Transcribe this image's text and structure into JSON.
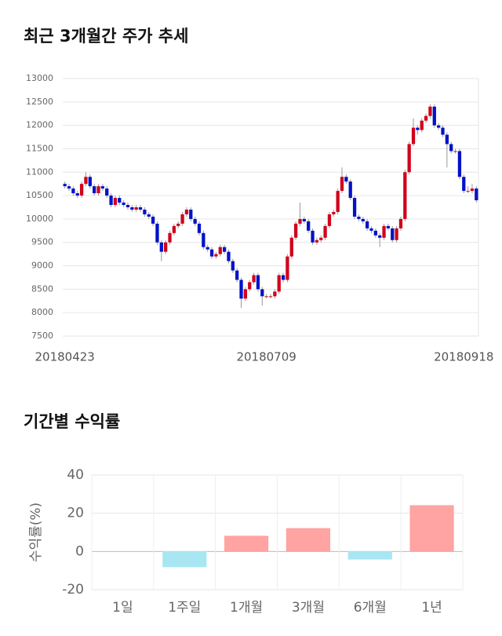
{
  "chart_data": [
    {
      "type": "candlestick",
      "title": "최근 3개월간 주가 추세",
      "up_color": "#d0021b",
      "down_color": "#0012c8",
      "grid": true,
      "ylim": [
        7500,
        13000
      ],
      "yticks": [
        7500,
        8000,
        8500,
        9000,
        9500,
        10000,
        10500,
        11000,
        11500,
        12000,
        12500,
        13000
      ],
      "categories": [
        "20180423",
        null,
        null,
        null,
        null,
        null,
        null,
        null,
        null,
        null,
        null,
        null,
        null,
        null,
        null,
        null,
        null,
        null,
        null,
        null,
        null,
        null,
        null,
        null,
        null,
        null,
        null,
        null,
        null,
        null,
        null,
        null,
        null,
        null,
        null,
        null,
        null,
        null,
        null,
        null,
        null,
        null,
        null,
        null,
        null,
        null,
        null,
        null,
        "20180709",
        null,
        null,
        null,
        null,
        null,
        null,
        null,
        null,
        null,
        null,
        null,
        null,
        null,
        null,
        null,
        null,
        null,
        null,
        null,
        null,
        null,
        null,
        null,
        null,
        null,
        null,
        null,
        null,
        null,
        null,
        null,
        null,
        null,
        null,
        null,
        null,
        null,
        null,
        null,
        null,
        null,
        null,
        null,
        null,
        null,
        null,
        "20180918",
        null,
        null,
        null
      ],
      "candles": [
        [
          10750,
          10800,
          10650,
          10700
        ],
        [
          10700,
          10750,
          10600,
          10650
        ],
        [
          10650,
          10700,
          10500,
          10550
        ],
        [
          10550,
          10600,
          10450,
          10500
        ],
        [
          10500,
          10800,
          10450,
          10750
        ],
        [
          10750,
          11000,
          10700,
          10900
        ],
        [
          10900,
          10950,
          10650,
          10700
        ],
        [
          10700,
          10750,
          10500,
          10550
        ],
        [
          10550,
          10750,
          10500,
          10700
        ],
        [
          10700,
          10750,
          10600,
          10650
        ],
        [
          10650,
          10700,
          10450,
          10500
        ],
        [
          10500,
          10550,
          10250,
          10300
        ],
        [
          10300,
          10500,
          10250,
          10450
        ],
        [
          10450,
          10500,
          10300,
          10350
        ],
        [
          10350,
          10400,
          10250,
          10300
        ],
        [
          10300,
          10350,
          10200,
          10250
        ],
        [
          10250,
          10300,
          10150,
          10200
        ],
        [
          10200,
          10300,
          10150,
          10250
        ],
        [
          10250,
          10300,
          10150,
          10200
        ],
        [
          10200,
          10250,
          10050,
          10100
        ],
        [
          10100,
          10150,
          10000,
          10050
        ],
        [
          10050,
          10100,
          9850,
          9900
        ],
        [
          9900,
          9950,
          9450,
          9500
        ],
        [
          9500,
          9550,
          9100,
          9300
        ],
        [
          9300,
          9550,
          9250,
          9500
        ],
        [
          9500,
          9750,
          9450,
          9700
        ],
        [
          9700,
          9900,
          9650,
          9850
        ],
        [
          9850,
          9950,
          9800,
          9900
        ],
        [
          9900,
          10150,
          9850,
          10100
        ],
        [
          10100,
          10250,
          10050,
          10200
        ],
        [
          10200,
          10250,
          9950,
          10000
        ],
        [
          10000,
          10050,
          9850,
          9900
        ],
        [
          9900,
          9950,
          9650,
          9700
        ],
        [
          9700,
          9750,
          9350,
          9400
        ],
        [
          9400,
          9450,
          9300,
          9350
        ],
        [
          9350,
          9400,
          9150,
          9200
        ],
        [
          9200,
          9300,
          9150,
          9250
        ],
        [
          9250,
          9450,
          9200,
          9400
        ],
        [
          9400,
          9450,
          9250,
          9300
        ],
        [
          9300,
          9350,
          9050,
          9100
        ],
        [
          9100,
          9150,
          8850,
          8900
        ],
        [
          8900,
          8950,
          8650,
          8700
        ],
        [
          8700,
          8750,
          8100,
          8300
        ],
        [
          8300,
          8550,
          8250,
          8500
        ],
        [
          8500,
          8700,
          8450,
          8650
        ],
        [
          8650,
          8850,
          8600,
          8800
        ],
        [
          8800,
          8850,
          8450,
          8500
        ],
        [
          8500,
          8550,
          8150,
          8350
        ],
        [
          8350,
          8400,
          8300,
          8350
        ],
        [
          8350,
          8400,
          8300,
          8350
        ],
        [
          8350,
          8500,
          8300,
          8450
        ],
        [
          8450,
          8850,
          8400,
          8800
        ],
        [
          8800,
          8850,
          8650,
          8700
        ],
        [
          8700,
          9250,
          8650,
          9200
        ],
        [
          9200,
          9650,
          9150,
          9600
        ],
        [
          9600,
          9950,
          9550,
          9900
        ],
        [
          9900,
          10350,
          9850,
          10000
        ],
        [
          10000,
          10050,
          9900,
          9950
        ],
        [
          9950,
          10000,
          9700,
          9750
        ],
        [
          9750,
          9800,
          9450,
          9500
        ],
        [
          9500,
          9600,
          9450,
          9550
        ],
        [
          9550,
          9650,
          9500,
          9600
        ],
        [
          9600,
          9900,
          9550,
          9850
        ],
        [
          9850,
          10150,
          9800,
          10100
        ],
        [
          10100,
          10200,
          10050,
          10150
        ],
        [
          10150,
          10650,
          10100,
          10600
        ],
        [
          10600,
          11100,
          10550,
          10900
        ],
        [
          10900,
          10950,
          10750,
          10800
        ],
        [
          10800,
          10850,
          10400,
          10450
        ],
        [
          10450,
          10500,
          10000,
          10050
        ],
        [
          10050,
          10100,
          9950,
          10000
        ],
        [
          10000,
          10050,
          9900,
          9950
        ],
        [
          9950,
          10000,
          9750,
          9800
        ],
        [
          9800,
          9850,
          9700,
          9750
        ],
        [
          9750,
          9800,
          9600,
          9650
        ],
        [
          9650,
          9700,
          9400,
          9600
        ],
        [
          9600,
          9900,
          9550,
          9850
        ],
        [
          9850,
          9900,
          9750,
          9800
        ],
        [
          9800,
          9850,
          9500,
          9550
        ],
        [
          9550,
          9850,
          9500,
          9800
        ],
        [
          9800,
          10050,
          9750,
          10000
        ],
        [
          10000,
          11050,
          9950,
          11000
        ],
        [
          11000,
          11650,
          10950,
          11600
        ],
        [
          11600,
          12150,
          11550,
          11950
        ],
        [
          11950,
          12000,
          11800,
          11900
        ],
        [
          11900,
          12150,
          11850,
          12100
        ],
        [
          12100,
          12250,
          12050,
          12200
        ],
        [
          12200,
          12450,
          12150,
          12400
        ],
        [
          12400,
          12450,
          11950,
          12000
        ],
        [
          12000,
          12050,
          11900,
          11950
        ],
        [
          11950,
          12000,
          11750,
          11800
        ],
        [
          11800,
          11850,
          11100,
          11600
        ],
        [
          11600,
          11650,
          11400,
          11450
        ],
        [
          11450,
          11500,
          11400,
          11450
        ],
        [
          11450,
          11500,
          10850,
          10900
        ],
        [
          10900,
          10950,
          10550,
          10600
        ],
        [
          10600,
          10700,
          10550,
          10600
        ],
        [
          10600,
          10750,
          10550,
          10650
        ],
        [
          10650,
          10700,
          10350,
          10400
        ]
      ]
    },
    {
      "type": "bar",
      "title": "기간별 수익률",
      "ylabel": "수익률(%)",
      "grid": true,
      "categories": [
        "1일",
        "1주일",
        "1개월",
        "3개월",
        "6개월",
        "1년"
      ],
      "values": [
        0,
        -8,
        8,
        12,
        -4,
        24
      ],
      "colors": [
        "#ffa3a3",
        "#a8e6f2",
        "#ffa3a3",
        "#ffa3a3",
        "#a8e6f2",
        "#ffa3a3"
      ],
      "ylim": [
        -20,
        40
      ],
      "yticks": [
        -20,
        0,
        20,
        40
      ]
    }
  ]
}
